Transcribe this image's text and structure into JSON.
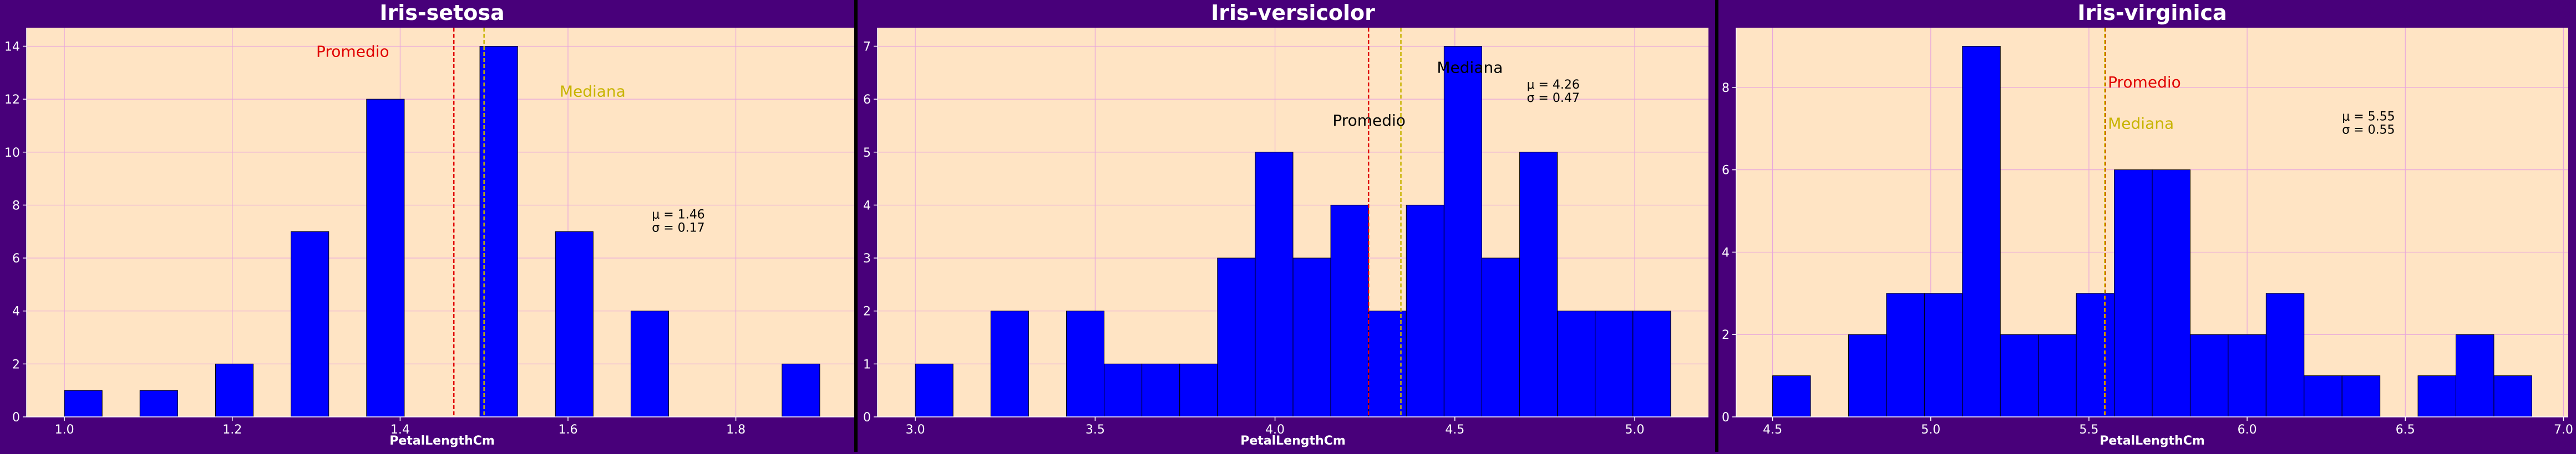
{
  "chart_data": [
    {
      "type": "bar",
      "title": "Iris-setosa",
      "xlabel": "PetalLengthCm",
      "ylabel": "",
      "xlim": [
        0.955,
        1.945
      ],
      "ylim": [
        0,
        14.7
      ],
      "xticks": [
        "1.0",
        "1.2",
        "1.4",
        "1.6",
        "1.8"
      ],
      "yticks": [
        "0",
        "2",
        "4",
        "6",
        "8",
        "10",
        "12",
        "14"
      ],
      "bins": [
        {
          "x0": 1.0,
          "x1": 1.045,
          "count": 1
        },
        {
          "x0": 1.09,
          "x1": 1.135,
          "count": 1
        },
        {
          "x0": 1.18,
          "x1": 1.225,
          "count": 2
        },
        {
          "x0": 1.27,
          "x1": 1.315,
          "count": 7
        },
        {
          "x0": 1.36,
          "x1": 1.405,
          "count": 12
        },
        {
          "x0": 1.495,
          "x1": 1.54,
          "count": 14
        },
        {
          "x0": 1.585,
          "x1": 1.63,
          "count": 7
        },
        {
          "x0": 1.675,
          "x1": 1.72,
          "count": 4
        },
        {
          "x0": 1.855,
          "x1": 1.9,
          "count": 2
        }
      ],
      "mean": 1.464,
      "median": 1.5,
      "mean_label": "Promedio",
      "median_label": "Mediana",
      "mean_label_at": [
        1.3,
        13.6
      ],
      "median_label_at": [
        1.59,
        12.1
      ],
      "stats_line1": "μ = 1.46",
      "stats_line2": "σ = 0.17",
      "stats_at": [
        1.7,
        7.5
      ]
    },
    {
      "type": "bar",
      "title": "Iris-versicolor",
      "xlabel": "PetalLengthCm",
      "ylabel": "",
      "xlim": [
        2.895,
        5.205
      ],
      "ylim": [
        0,
        7.35
      ],
      "xticks": [
        "3.0",
        "3.5",
        "4.0",
        "4.5",
        "5.0"
      ],
      "yticks": [
        "0",
        "1",
        "2",
        "3",
        "4",
        "5",
        "6",
        "7"
      ],
      "bins": [
        {
          "x0": 3.0,
          "x1": 3.105,
          "count": 1
        },
        {
          "x0": 3.21,
          "x1": 3.315,
          "count": 2
        },
        {
          "x0": 3.42,
          "x1": 3.525,
          "count": 2
        },
        {
          "x0": 3.525,
          "x1": 3.63,
          "count": 1
        },
        {
          "x0": 3.63,
          "x1": 3.735,
          "count": 1
        },
        {
          "x0": 3.735,
          "x1": 3.84,
          "count": 1
        },
        {
          "x0": 3.84,
          "x1": 3.945,
          "count": 3
        },
        {
          "x0": 3.945,
          "x1": 4.05,
          "count": 5
        },
        {
          "x0": 4.05,
          "x1": 4.155,
          "count": 3
        },
        {
          "x0": 4.155,
          "x1": 4.26,
          "count": 4
        },
        {
          "x0": 4.26,
          "x1": 4.365,
          "count": 2
        },
        {
          "x0": 4.365,
          "x1": 4.47,
          "count": 4
        },
        {
          "x0": 4.47,
          "x1": 4.575,
          "count": 7
        },
        {
          "x0": 4.575,
          "x1": 4.68,
          "count": 3
        },
        {
          "x0": 4.68,
          "x1": 4.785,
          "count": 5
        },
        {
          "x0": 4.785,
          "x1": 4.89,
          "count": 2
        },
        {
          "x0": 4.89,
          "x1": 4.995,
          "count": 2
        },
        {
          "x0": 4.995,
          "x1": 5.1,
          "count": 2
        }
      ],
      "mean": 4.26,
      "median": 4.35,
      "mean_label": "Promedio",
      "median_label": "Mediana",
      "mean_label_at": [
        4.16,
        5.5
      ],
      "median_label_at": [
        4.45,
        6.5
      ],
      "stats_line1": "μ = 4.26",
      "stats_line2": "σ = 0.47",
      "stats_at": [
        4.7,
        6.2
      ]
    },
    {
      "type": "bar",
      "title": "Iris-virginica",
      "xlabel": "PetalLengthCm",
      "ylabel": "",
      "xlim": [
        4.385,
        7.015
      ],
      "ylim": [
        0,
        9.45
      ],
      "xticks": [
        "4.5",
        "5.0",
        "5.5",
        "6.0",
        "6.5",
        "7.0"
      ],
      "yticks": [
        "0",
        "2",
        "4",
        "6",
        "8"
      ],
      "bins": [
        {
          "x0": 4.5,
          "x1": 4.62,
          "count": 1
        },
        {
          "x0": 4.74,
          "x1": 4.86,
          "count": 2
        },
        {
          "x0": 4.86,
          "x1": 4.98,
          "count": 3
        },
        {
          "x0": 4.98,
          "x1": 5.1,
          "count": 3
        },
        {
          "x0": 5.1,
          "x1": 5.22,
          "count": 9
        },
        {
          "x0": 5.22,
          "x1": 5.34,
          "count": 2
        },
        {
          "x0": 5.34,
          "x1": 5.46,
          "count": 2
        },
        {
          "x0": 5.46,
          "x1": 5.58,
          "count": 3
        },
        {
          "x0": 5.58,
          "x1": 5.7,
          "count": 6
        },
        {
          "x0": 5.7,
          "x1": 5.82,
          "count": 6
        },
        {
          "x0": 5.82,
          "x1": 5.94,
          "count": 2
        },
        {
          "x0": 5.94,
          "x1": 6.06,
          "count": 2
        },
        {
          "x0": 6.06,
          "x1": 6.18,
          "count": 3
        },
        {
          "x0": 6.18,
          "x1": 6.3,
          "count": 1
        },
        {
          "x0": 6.3,
          "x1": 6.42,
          "count": 1
        },
        {
          "x0": 6.54,
          "x1": 6.66,
          "count": 1
        },
        {
          "x0": 6.66,
          "x1": 6.78,
          "count": 2
        },
        {
          "x0": 6.78,
          "x1": 6.9,
          "count": 1
        }
      ],
      "mean": 5.552,
      "median": 5.55,
      "mean_label": "Promedio",
      "median_label": "Mediana",
      "mean_label_at": [
        5.56,
        8.0
      ],
      "median_label_at": [
        5.56,
        7.0
      ],
      "stats_line1": "μ = 5.55",
      "stats_line2": "σ = 0.55",
      "stats_at": [
        6.3,
        7.2
      ]
    }
  ],
  "style": {
    "page_bg": "#48007a",
    "plot_bg": "#ffe4c4",
    "bar_fill": "#0000ff",
    "bar_edge": "#000000",
    "grid": "#e8a6dc",
    "mean_color": "#e00000",
    "median_color": "#c8b400",
    "text_color": "#ffffff"
  }
}
